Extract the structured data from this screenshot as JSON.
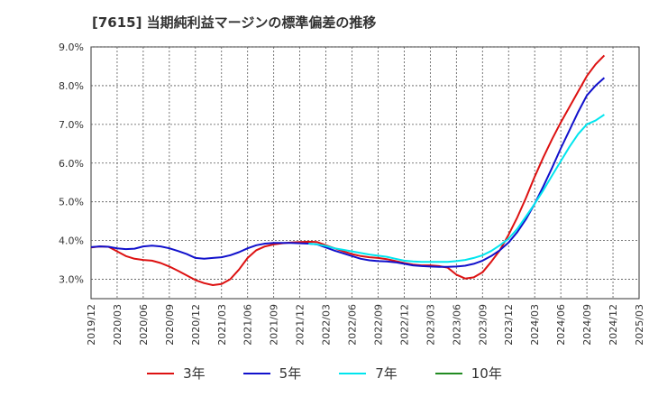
{
  "chart_data": {
    "type": "line",
    "title": "[7615]  当期純利益マージンの標準偏差の推移",
    "xlabel": "",
    "ylabel": "",
    "ylim": [
      2.5,
      9.0
    ],
    "yticks": [
      "9.0%",
      "8.0%",
      "7.0%",
      "6.0%",
      "5.0%",
      "4.0%",
      "3.0%"
    ],
    "ytick_values": [
      9.0,
      8.0,
      7.0,
      6.0,
      5.0,
      4.0,
      3.0
    ],
    "x_categories": [
      "2019/12",
      "2020/03",
      "2020/06",
      "2020/09",
      "2020/12",
      "2021/03",
      "2021/06",
      "2021/09",
      "2021/12",
      "2022/03",
      "2022/06",
      "2022/09",
      "2022/12",
      "2023/03",
      "2023/06",
      "2023/09",
      "2023/12",
      "2024/03",
      "2024/06",
      "2024/09",
      "2024/12",
      "2025/03"
    ],
    "grid": true,
    "legend_position": "bottom",
    "series": [
      {
        "name": "3年",
        "color": "#dd1111",
        "points": [
          [
            "2019/12",
            3.82
          ],
          [
            "2020/01",
            3.85
          ],
          [
            "2020/02",
            3.84
          ],
          [
            "2020/03",
            3.72
          ],
          [
            "2020/04",
            3.6
          ],
          [
            "2020/05",
            3.53
          ],
          [
            "2020/06",
            3.5
          ],
          [
            "2020/07",
            3.48
          ],
          [
            "2020/08",
            3.42
          ],
          [
            "2020/09",
            3.33
          ],
          [
            "2020/10",
            3.22
          ],
          [
            "2020/11",
            3.1
          ],
          [
            "2020/12",
            2.98
          ],
          [
            "2021/01",
            2.9
          ],
          [
            "2021/02",
            2.85
          ],
          [
            "2021/03",
            2.88
          ],
          [
            "2021/04",
            3.0
          ],
          [
            "2021/05",
            3.25
          ],
          [
            "2021/06",
            3.55
          ],
          [
            "2021/07",
            3.75
          ],
          [
            "2021/08",
            3.85
          ],
          [
            "2021/09",
            3.9
          ],
          [
            "2021/10",
            3.93
          ],
          [
            "2021/11",
            3.95
          ],
          [
            "2021/12",
            3.96
          ],
          [
            "2022/01",
            3.97
          ],
          [
            "2022/02",
            3.96
          ],
          [
            "2022/03",
            3.88
          ],
          [
            "2022/04",
            3.8
          ],
          [
            "2022/05",
            3.72
          ],
          [
            "2022/06",
            3.65
          ],
          [
            "2022/07",
            3.6
          ],
          [
            "2022/08",
            3.57
          ],
          [
            "2022/09",
            3.55
          ],
          [
            "2022/10",
            3.52
          ],
          [
            "2022/11",
            3.47
          ],
          [
            "2022/12",
            3.42
          ],
          [
            "2023/01",
            3.38
          ],
          [
            "2023/02",
            3.36
          ],
          [
            "2023/03",
            3.36
          ],
          [
            "2023/04",
            3.34
          ],
          [
            "2023/05",
            3.3
          ],
          [
            "2023/06",
            3.12
          ],
          [
            "2023/07",
            3.02
          ],
          [
            "2023/08",
            3.05
          ],
          [
            "2023/09",
            3.18
          ],
          [
            "2023/10",
            3.45
          ],
          [
            "2023/11",
            3.75
          ],
          [
            "2023/12",
            4.15
          ],
          [
            "2024/01",
            4.6
          ],
          [
            "2024/02",
            5.1
          ],
          [
            "2024/03",
            5.65
          ],
          [
            "2024/04",
            6.15
          ],
          [
            "2024/05",
            6.62
          ],
          [
            "2024/06",
            7.05
          ],
          [
            "2024/07",
            7.45
          ],
          [
            "2024/08",
            7.85
          ],
          [
            "2024/09",
            8.25
          ],
          [
            "2024/10",
            8.55
          ],
          [
            "2024/11",
            8.78
          ]
        ]
      },
      {
        "name": "5年",
        "color": "#1111cc",
        "points": [
          [
            "2019/12",
            3.83
          ],
          [
            "2020/01",
            3.85
          ],
          [
            "2020/02",
            3.84
          ],
          [
            "2020/03",
            3.8
          ],
          [
            "2020/04",
            3.78
          ],
          [
            "2020/05",
            3.79
          ],
          [
            "2020/06",
            3.85
          ],
          [
            "2020/07",
            3.87
          ],
          [
            "2020/08",
            3.85
          ],
          [
            "2020/09",
            3.8
          ],
          [
            "2020/10",
            3.73
          ],
          [
            "2020/11",
            3.65
          ],
          [
            "2020/12",
            3.55
          ],
          [
            "2021/01",
            3.53
          ],
          [
            "2021/02",
            3.55
          ],
          [
            "2021/03",
            3.57
          ],
          [
            "2021/04",
            3.62
          ],
          [
            "2021/05",
            3.7
          ],
          [
            "2021/06",
            3.8
          ],
          [
            "2021/07",
            3.88
          ],
          [
            "2021/08",
            3.92
          ],
          [
            "2021/09",
            3.94
          ],
          [
            "2021/10",
            3.94
          ],
          [
            "2021/11",
            3.94
          ],
          [
            "2021/12",
            3.93
          ],
          [
            "2022/01",
            3.92
          ],
          [
            "2022/02",
            3.9
          ],
          [
            "2022/03",
            3.82
          ],
          [
            "2022/04",
            3.74
          ],
          [
            "2022/05",
            3.67
          ],
          [
            "2022/06",
            3.6
          ],
          [
            "2022/07",
            3.53
          ],
          [
            "2022/08",
            3.49
          ],
          [
            "2022/09",
            3.47
          ],
          [
            "2022/10",
            3.46
          ],
          [
            "2022/11",
            3.44
          ],
          [
            "2022/12",
            3.4
          ],
          [
            "2023/01",
            3.36
          ],
          [
            "2023/02",
            3.34
          ],
          [
            "2023/03",
            3.33
          ],
          [
            "2023/04",
            3.32
          ],
          [
            "2023/05",
            3.32
          ],
          [
            "2023/06",
            3.33
          ],
          [
            "2023/07",
            3.35
          ],
          [
            "2023/08",
            3.4
          ],
          [
            "2023/09",
            3.48
          ],
          [
            "2023/10",
            3.6
          ],
          [
            "2023/11",
            3.75
          ],
          [
            "2023/12",
            3.95
          ],
          [
            "2024/01",
            4.22
          ],
          [
            "2024/02",
            4.55
          ],
          [
            "2024/03",
            4.95
          ],
          [
            "2024/04",
            5.4
          ],
          [
            "2024/05",
            5.88
          ],
          [
            "2024/06",
            6.38
          ],
          [
            "2024/07",
            6.85
          ],
          [
            "2024/08",
            7.32
          ],
          [
            "2024/09",
            7.75
          ],
          [
            "2024/10",
            8.0
          ],
          [
            "2024/11",
            8.2
          ]
        ]
      },
      {
        "name": "7年",
        "color": "#00e5ee",
        "points": [
          [
            "2022/01",
            3.92
          ],
          [
            "2022/02",
            3.9
          ],
          [
            "2022/03",
            3.86
          ],
          [
            "2022/04",
            3.8
          ],
          [
            "2022/05",
            3.76
          ],
          [
            "2022/06",
            3.72
          ],
          [
            "2022/07",
            3.68
          ],
          [
            "2022/08",
            3.64
          ],
          [
            "2022/09",
            3.61
          ],
          [
            "2022/10",
            3.58
          ],
          [
            "2022/11",
            3.53
          ],
          [
            "2022/12",
            3.48
          ],
          [
            "2023/01",
            3.46
          ],
          [
            "2023/02",
            3.45
          ],
          [
            "2023/03",
            3.45
          ],
          [
            "2023/04",
            3.45
          ],
          [
            "2023/05",
            3.45
          ],
          [
            "2023/06",
            3.47
          ],
          [
            "2023/07",
            3.5
          ],
          [
            "2023/08",
            3.55
          ],
          [
            "2023/09",
            3.62
          ],
          [
            "2023/10",
            3.73
          ],
          [
            "2023/11",
            3.88
          ],
          [
            "2023/12",
            4.05
          ],
          [
            "2024/01",
            4.3
          ],
          [
            "2024/02",
            4.62
          ],
          [
            "2024/03",
            4.95
          ],
          [
            "2024/04",
            5.3
          ],
          [
            "2024/05",
            5.68
          ],
          [
            "2024/06",
            6.05
          ],
          [
            "2024/07",
            6.42
          ],
          [
            "2024/08",
            6.75
          ],
          [
            "2024/09",
            7.0
          ],
          [
            "2024/10",
            7.1
          ],
          [
            "2024/11",
            7.25
          ]
        ]
      },
      {
        "name": "10年",
        "color": "#228b22",
        "points": []
      }
    ]
  }
}
